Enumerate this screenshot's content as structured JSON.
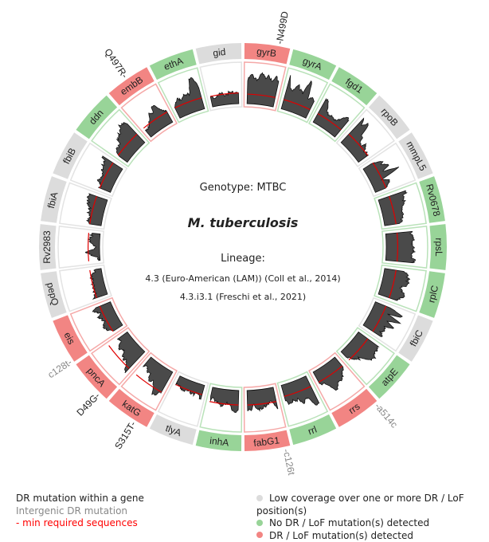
{
  "center": {
    "genotype": "Genotype: MTBC",
    "species": "M. tuberculosis",
    "lineage_label": "Lineage:",
    "lineage_1": "4.3 (Euro-American (LAM)) (Coll et al., 2014)",
    "lineage_2": "4.3.i3.1 (Freschi et al., 2021)"
  },
  "colors": {
    "low_coverage": "#dcdcdc",
    "no_mutation": "#98d498",
    "mutation": "#f28583",
    "min_line": "#e00000",
    "coverage_fill": "#4a4a4a",
    "gene_mutation_text": "#222222",
    "intergenic_mutation_text": "#888888"
  },
  "genes": [
    {
      "name": "gyrB",
      "status": "mutation",
      "coverage": [
        0.6,
        0.75,
        0.7,
        0.65,
        0.8,
        0.7,
        0.85,
        0.6,
        0.75,
        0.7
      ],
      "min": 0.25
    },
    {
      "name": "gyrA",
      "status": "no_mutation",
      "coverage": [
        0.9,
        0.6,
        0.55,
        0.7,
        0.65,
        0.6,
        0.95,
        0.5,
        0.6,
        0.45
      ],
      "min": 0.25
    },
    {
      "name": "fgd1",
      "status": "no_mutation",
      "coverage": [
        0.75,
        0.6,
        0.45,
        0.4,
        0.35,
        0.35,
        0.4,
        0.5,
        0.55,
        0.6
      ],
      "min": 0.25
    },
    {
      "name": "rpoB",
      "status": "low_coverage",
      "coverage": [
        0.85,
        0.7,
        0.9,
        0.5,
        0.45,
        0.35,
        0.4,
        0.3,
        0.35,
        0.3
      ],
      "min": 0.3
    },
    {
      "name": "mmpL5",
      "status": "low_coverage",
      "coverage": [
        0.3,
        0.5,
        0.45,
        0.7,
        0.4,
        0.8,
        0.3,
        0.5,
        0.35,
        0.3
      ],
      "min": 0.3
    },
    {
      "name": "Rv0678",
      "status": "no_mutation",
      "coverage": [
        0.75,
        0.7,
        0.65,
        0.6,
        0.55,
        0.55,
        0.5,
        0.45,
        0.5,
        0.45
      ],
      "min": 0.3
    },
    {
      "name": "rpsL",
      "status": "no_mutation",
      "coverage": [
        0.7,
        0.7,
        0.68,
        0.7,
        0.7,
        0.68,
        0.7,
        0.7,
        0.72,
        0.7
      ],
      "min": 0.3
    },
    {
      "name": "rplC",
      "status": "no_mutation",
      "coverage": [
        0.5,
        0.6,
        0.7,
        0.65,
        0.6,
        0.55,
        0.6,
        0.65,
        0.6,
        0.55
      ],
      "min": 0.3
    },
    {
      "name": "fbiC",
      "status": "low_coverage",
      "coverage": [
        0.45,
        0.9,
        0.4,
        0.85,
        0.5,
        0.7,
        0.45,
        0.6,
        0.5,
        0.55
      ],
      "min": 0.3
    },
    {
      "name": "atpE",
      "status": "no_mutation",
      "coverage": [
        0.6,
        0.65,
        0.7,
        0.72,
        0.7,
        0.65,
        0.5,
        0.4,
        0.3,
        0.25
      ],
      "min": 0.3
    },
    {
      "name": "rrs",
      "status": "mutation",
      "coverage": [
        0.35,
        0.45,
        0.5,
        0.55,
        0.6,
        0.7,
        0.65,
        0.5,
        0.4,
        0.3
      ],
      "min": 0.3
    },
    {
      "name": "rrl",
      "status": "no_mutation",
      "coverage": [
        0.8,
        0.75,
        0.6,
        0.55,
        0.6,
        0.5,
        0.55,
        0.45,
        0.5,
        0.45
      ],
      "min": 0.3
    },
    {
      "name": "fabG1",
      "status": "mutation",
      "coverage": [
        0.55,
        0.45,
        0.35,
        0.4,
        0.5,
        0.55,
        0.45,
        0.4,
        0.55,
        0.5
      ],
      "min": 0.38
    },
    {
      "name": "inhA",
      "status": "no_mutation",
      "coverage": [
        0.55,
        0.55,
        0.5,
        0.4,
        0.35,
        0.4,
        0.45,
        0.35,
        0.25,
        0.3
      ],
      "min": 0.38
    },
    {
      "name": "tlyA",
      "status": "low_coverage",
      "coverage": [
        0.35,
        0.3,
        0.3,
        0.28,
        0.3,
        0.3,
        0.28,
        0.28,
        0.25,
        0.25
      ],
      "min": 0.25
    },
    {
      "name": "katG",
      "status": "mutation",
      "coverage": [
        0.65,
        0.7,
        0.75,
        0.6,
        0.45,
        0.5,
        0.35,
        0.4,
        0.2,
        0.3
      ],
      "min": 0.6
    },
    {
      "name": "pncA",
      "status": "mutation",
      "coverage": [
        0.7,
        0.65,
        0.55,
        0.5,
        0.45,
        0.4,
        0.45,
        0.35,
        0.3,
        0.35
      ],
      "min": 0.6
    },
    {
      "name": "eis",
      "status": "mutation",
      "coverage": [
        0.3,
        0.35,
        0.4,
        0.45,
        0.4,
        0.35,
        0.45,
        0.4,
        0.5,
        0.4
      ],
      "min": 0.3
    },
    {
      "name": "pepQ",
      "status": "low_coverage",
      "coverage": [
        0.35,
        0.3,
        0.35,
        0.3,
        0.25,
        0.3,
        0.3,
        0.25,
        0.2,
        0.2
      ],
      "min": 0.3
    },
    {
      "name": "Rv2983",
      "status": "low_coverage",
      "coverage": [
        0.05,
        0.1,
        0.2,
        0.35,
        0.15,
        0.1,
        0.2,
        0.3,
        0.25,
        0.15
      ],
      "min": 0.3
    },
    {
      "name": "fbiA",
      "status": "low_coverage",
      "coverage": [
        0.3,
        0.35,
        0.35,
        0.4,
        0.35,
        0.4,
        0.5,
        0.45,
        0.5,
        0.55
      ],
      "min": 0.3
    },
    {
      "name": "fbiB",
      "status": "low_coverage",
      "coverage": [
        0.3,
        0.35,
        0.4,
        0.35,
        0.4,
        0.45,
        0.4,
        0.5,
        0.55,
        0.6
      ],
      "min": 0.3
    },
    {
      "name": "ddn",
      "status": "no_mutation",
      "coverage": [
        0.3,
        0.4,
        0.45,
        0.5,
        0.55,
        0.6,
        0.7,
        0.75,
        0.72,
        0.7
      ],
      "min": 0.3
    },
    {
      "name": "embB",
      "status": "mutation",
      "coverage": [
        0.2,
        0.25,
        0.3,
        0.3,
        0.55,
        0.5,
        0.6,
        0.55,
        0.45,
        0.3
      ],
      "min": 0.3
    },
    {
      "name": "ethA",
      "status": "no_mutation",
      "coverage": [
        0.35,
        0.4,
        0.5,
        0.45,
        0.5,
        0.45,
        0.55,
        0.9,
        0.8,
        0.6
      ],
      "min": 0.3
    },
    {
      "name": "gid",
      "status": "low_coverage",
      "coverage": [
        0.25,
        0.25,
        0.27,
        0.27,
        0.28,
        0.28,
        0.3,
        0.3,
        0.3,
        0.32
      ],
      "min": 0.28
    }
  ],
  "mutations": [
    {
      "gene": "gyrB",
      "label": "N499D",
      "type": "gene",
      "pos": 0.75
    },
    {
      "gene": "rrs",
      "label": "a514c",
      "type": "intergenic",
      "pos": 0.05
    },
    {
      "gene": "fabG1",
      "label": "c126t",
      "type": "intergenic",
      "pos": 0.1
    },
    {
      "gene": "katG",
      "label": "S315T",
      "type": "gene",
      "pos": 0.3
    },
    {
      "gene": "pncA",
      "label": "D49G",
      "type": "gene",
      "pos": 0.2
    },
    {
      "gene": "eis",
      "label": "c128t",
      "type": "intergenic",
      "pos": 0.05
    },
    {
      "gene": "embB",
      "label": "Q497R",
      "type": "gene",
      "pos": 0.5
    }
  ],
  "legend": {
    "left": [
      {
        "label": "DR mutation within a gene",
        "color": "#222222"
      },
      {
        "label": "Intergenic DR mutation",
        "color": "#888888"
      },
      {
        "label": "- min required sequences",
        "color": "#ff0000"
      }
    ],
    "right": [
      {
        "label": "Low coverage over one or more DR / LoF position(s)",
        "status": "low_coverage"
      },
      {
        "label": "No DR / LoF mutation(s) detected",
        "status": "no_mutation"
      },
      {
        "label": "DR / LoF mutation(s) detected",
        "status": "mutation"
      }
    ]
  }
}
